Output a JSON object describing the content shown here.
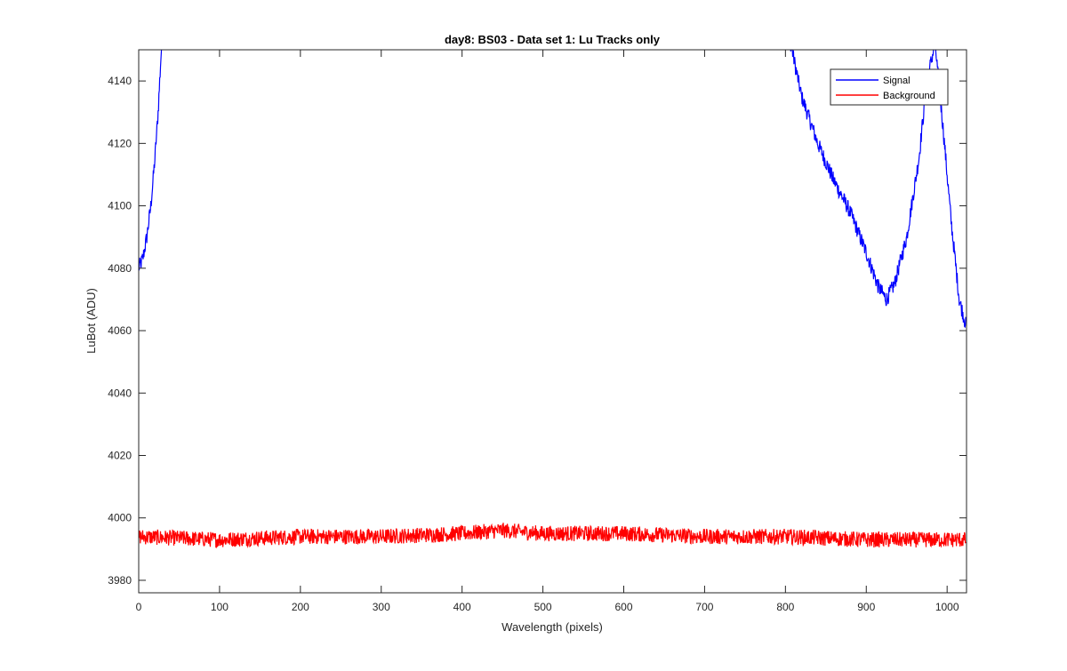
{
  "chart_data": {
    "type": "line",
    "title": "day8: BS03 - Data set 1: Lu Tracks only",
    "xlabel": "Wavelength (pixels)",
    "ylabel": "LuBot (ADU)",
    "xlim": [
      0,
      1024
    ],
    "ylim": [
      3976,
      4150
    ],
    "xticks": [
      0,
      100,
      200,
      300,
      400,
      500,
      600,
      700,
      800,
      900,
      1000
    ],
    "yticks": [
      3980,
      4000,
      4020,
      4040,
      4060,
      4080,
      4100,
      4120,
      4140
    ],
    "grid": false,
    "legend_position": "top-right",
    "series": [
      {
        "name": "Signal",
        "color": "#0000ff",
        "x": [
          0,
          5,
          10,
          15,
          20,
          24,
          27,
          30,
          800,
          820,
          840,
          860,
          880,
          900,
          915,
          925,
          935,
          950,
          965,
          975,
          985,
          995,
          1005,
          1015,
          1023
        ],
        "y": [
          4080,
          4083,
          4090,
          4100,
          4115,
          4130,
          4145,
          4160,
          4160,
          4135,
          4120,
          4108,
          4098,
          4085,
          4074,
          4070,
          4075,
          4090,
          4115,
          4140,
          4152,
          4125,
          4095,
          4070,
          4062
        ],
        "noise_amplitude": 2.5
      },
      {
        "name": "Background",
        "color": "#ff0000",
        "x": [
          0,
          100,
          200,
          300,
          400,
          450,
          500,
          600,
          700,
          800,
          900,
          1000,
          1023
        ],
        "y": [
          3994,
          3993,
          3994,
          3994,
          3995,
          3996,
          3995,
          3995,
          3994,
          3994,
          3993,
          3993,
          3993
        ],
        "noise_amplitude": 2.5
      }
    ]
  }
}
